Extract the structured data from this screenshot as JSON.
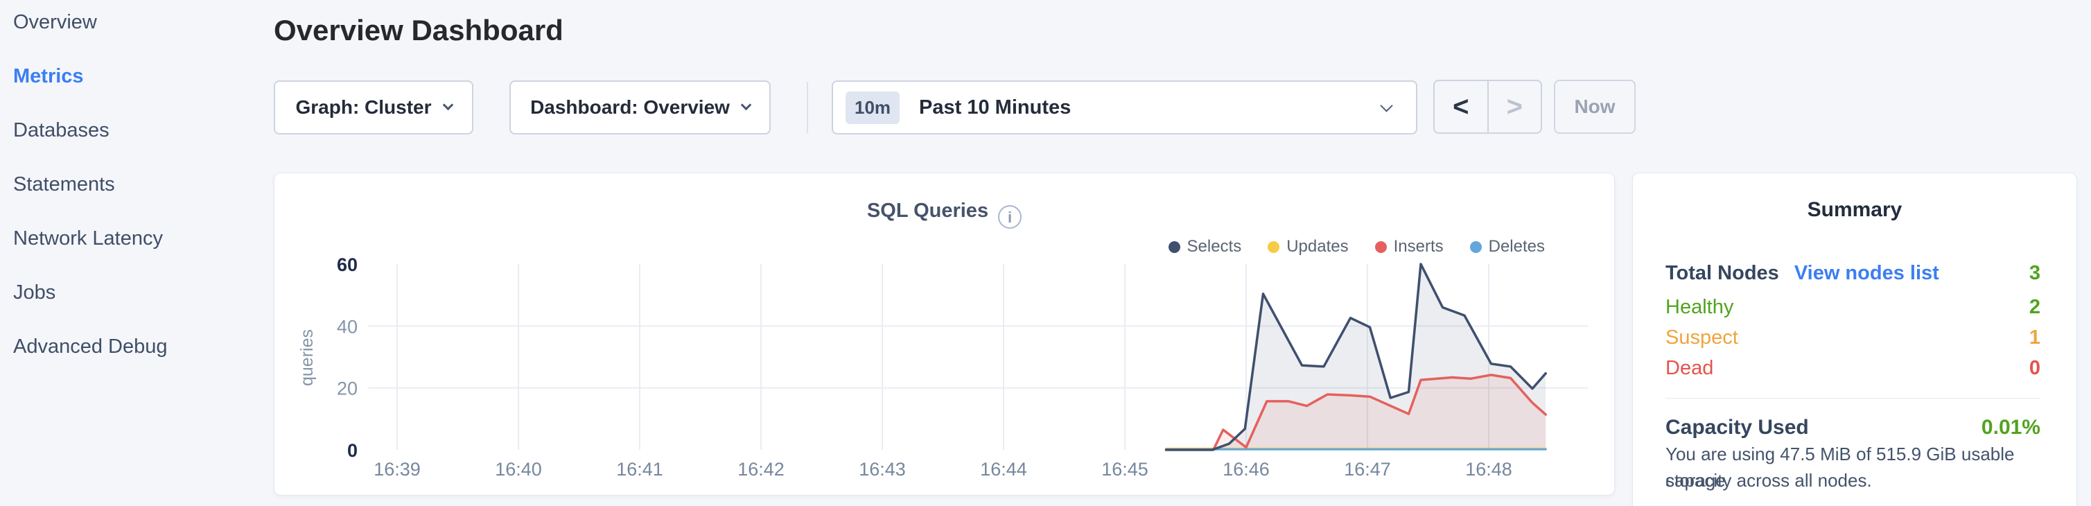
{
  "page": {
    "bg": "#f4f6fa",
    "accent_blue": "#3b7ef2"
  },
  "sidebar": {
    "items": [
      {
        "label": "Overview"
      },
      {
        "label": "Metrics"
      },
      {
        "label": "Databases"
      },
      {
        "label": "Statements"
      },
      {
        "label": "Network Latency"
      },
      {
        "label": "Jobs"
      },
      {
        "label": "Advanced Debug"
      }
    ],
    "active_index": 1
  },
  "header": {
    "title": "Overview Dashboard"
  },
  "toolbar": {
    "graph_dropdown_label": "Graph: Cluster",
    "dashboard_dropdown_label": "Dashboard: Overview",
    "time_range_badge": "10m",
    "time_range_label": "Past 10 Minutes",
    "prev_button": "<",
    "next_button": ">",
    "now_button": "Now"
  },
  "chart_panel": {
    "title": "SQL Queries",
    "info_glyph": "i"
  },
  "chart_data": {
    "type": "area",
    "title": "SQL Queries",
    "ylabel": "queries",
    "ylim": [
      0,
      60
    ],
    "y_ticks": [
      0,
      20,
      40,
      60
    ],
    "x_ticks": [
      "16:39",
      "16:40",
      "16:41",
      "16:42",
      "16:43",
      "16:44",
      "16:45",
      "16:46",
      "16:47",
      "16:48"
    ],
    "x_minutes": [
      39,
      40,
      41,
      42,
      43,
      44,
      45,
      46,
      47,
      48
    ],
    "grid": true,
    "legend_position": "top-right",
    "series": [
      {
        "name": "Selects",
        "color": "#3f4f6e",
        "fill": "rgba(63,79,110,0.10)",
        "points": [
          [
            45.34,
            0
          ],
          [
            45.72,
            0
          ],
          [
            45.86,
            2
          ],
          [
            45.99,
            6.8
          ],
          [
            46.14,
            50.4
          ],
          [
            46.46,
            27.3
          ],
          [
            46.64,
            26.9
          ],
          [
            46.86,
            42.6
          ],
          [
            47.02,
            39.6
          ],
          [
            47.19,
            16.8
          ],
          [
            47.34,
            18.7
          ],
          [
            47.44,
            60
          ],
          [
            47.62,
            46
          ],
          [
            47.8,
            43.4
          ],
          [
            48.02,
            27.8
          ],
          [
            48.18,
            26.9
          ],
          [
            48.36,
            19.8
          ],
          [
            48.47,
            24.7
          ]
        ]
      },
      {
        "name": "Updates",
        "color": "#f6cb45",
        "fill": "none",
        "points": [
          [
            45.34,
            0.4
          ],
          [
            48.47,
            0.4
          ]
        ]
      },
      {
        "name": "Inserts",
        "color": "#e5605d",
        "fill": "rgba(229,96,93,0.10)",
        "points": [
          [
            45.73,
            0
          ],
          [
            45.81,
            6.5
          ],
          [
            46.0,
            0.8
          ],
          [
            46.17,
            15.7
          ],
          [
            46.35,
            15.7
          ],
          [
            46.5,
            14.2
          ],
          [
            46.67,
            17.9
          ],
          [
            46.86,
            17.6
          ],
          [
            47.02,
            17.2
          ],
          [
            47.34,
            11.6
          ],
          [
            47.44,
            22.6
          ],
          [
            47.7,
            23.4
          ],
          [
            47.85,
            23.0
          ],
          [
            48.02,
            24.2
          ],
          [
            48.18,
            23.2
          ],
          [
            48.36,
            15.2
          ],
          [
            48.47,
            11.4
          ]
        ]
      },
      {
        "name": "Deletes",
        "color": "#62a6dc",
        "fill": "none",
        "points": [
          [
            45.34,
            0.15
          ],
          [
            48.47,
            0.15
          ]
        ]
      }
    ]
  },
  "summary": {
    "title": "Summary",
    "total_nodes_label": "Total Nodes",
    "view_nodes_link": "View nodes list",
    "total_nodes_value": "3",
    "total_nodes_color": "#51a31e",
    "rows": [
      {
        "label": "Healthy",
        "value": "2",
        "color": "#51a31e"
      },
      {
        "label": "Suspect",
        "value": "1",
        "color": "#f0a43e"
      },
      {
        "label": "Dead",
        "value": "0",
        "color": "#e5534b"
      }
    ],
    "capacity_label": "Capacity Used",
    "capacity_value": "0.01%",
    "capacity_color": "#51a31e",
    "capacity_desc_line1": "You are using 47.5 MiB of 515.9 GiB usable storage",
    "capacity_desc_line2": "capacity across all nodes."
  }
}
